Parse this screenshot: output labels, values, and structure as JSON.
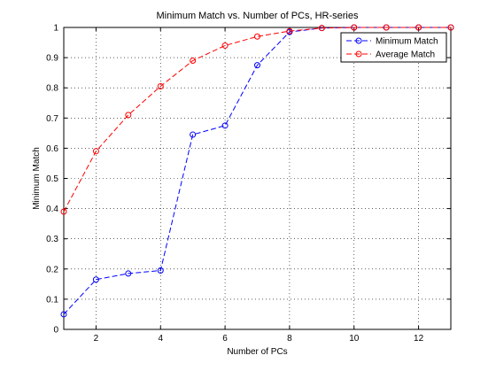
{
  "chart_data": {
    "type": "line",
    "title": "Minimum Match vs. Number of PCs, HR-series",
    "xlabel": "Number of PCs",
    "ylabel": "Minimum Match",
    "xlim": [
      1,
      13
    ],
    "ylim": [
      0,
      1
    ],
    "xticks": [
      2,
      4,
      6,
      8,
      10,
      12
    ],
    "yticks": [
      0,
      0.1,
      0.2,
      0.3,
      0.4,
      0.5,
      0.6,
      0.7,
      0.8,
      0.9,
      1
    ],
    "ytick_labels": [
      "0",
      "0.1",
      "0.2",
      "0.3",
      "0.4",
      "0.5",
      "0.6",
      "0.7",
      "0.8",
      "0.9",
      "1"
    ],
    "xtick_labels": [
      "2",
      "4",
      "6",
      "8",
      "10",
      "12"
    ],
    "grid": true,
    "legend_position": "top-right",
    "x": [
      1,
      2,
      3,
      4,
      5,
      6,
      7,
      8,
      9,
      10,
      11,
      12,
      13
    ],
    "series": [
      {
        "name": "Minimum Match",
        "color": "#0000ff",
        "marker": "circle",
        "linestyle": "dashed",
        "values": [
          0.05,
          0.165,
          0.185,
          0.195,
          0.645,
          0.675,
          0.875,
          0.985,
          0.998,
          1.0,
          1.0,
          1.0,
          1.0
        ]
      },
      {
        "name": "Average Match",
        "color": "#ff0000",
        "marker": "circle",
        "linestyle": "dashed",
        "values": [
          0.39,
          0.59,
          0.71,
          0.805,
          0.89,
          0.94,
          0.97,
          0.988,
          0.998,
          1.0,
          1.0,
          1.0,
          1.0
        ]
      }
    ]
  }
}
